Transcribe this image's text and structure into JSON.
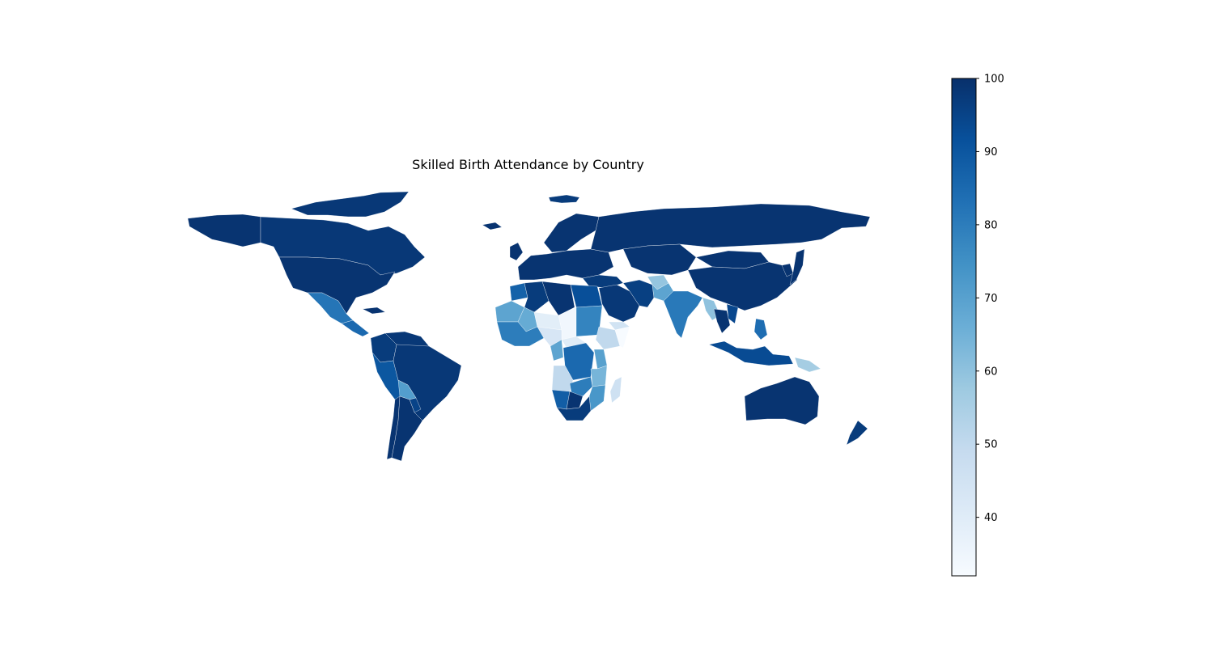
{
  "title": "Skilled Birth Attendance by Country",
  "colormap": {
    "name": "Blues",
    "stops": [
      "#f7fbff",
      "#deebf7",
      "#c6dbef",
      "#9ecae1",
      "#6baed6",
      "#4292c6",
      "#2171b5",
      "#08519c",
      "#08306b"
    ]
  },
  "colorbar": {
    "vmin": 32,
    "vmax": 100,
    "ticks": [
      {
        "value": 40,
        "label": "40"
      },
      {
        "value": 50,
        "label": "50"
      },
      {
        "value": 60,
        "label": "60"
      },
      {
        "value": 70,
        "label": "70"
      },
      {
        "value": 80,
        "label": "80"
      },
      {
        "value": 90,
        "label": "90"
      },
      {
        "value": 100,
        "label": "100"
      }
    ]
  },
  "chart_data": {
    "type": "choropleth",
    "title": "Skilled Birth Attendance by Country",
    "value_range": [
      32,
      100
    ],
    "regions": [
      {
        "id": "canada",
        "value": 98
      },
      {
        "id": "alaska",
        "value": 99
      },
      {
        "id": "greenland",
        "value": 97
      },
      {
        "id": "canadian-arctic",
        "value": 98
      },
      {
        "id": "usa",
        "value": 99
      },
      {
        "id": "mexico",
        "value": 82
      },
      {
        "id": "central-america",
        "value": 85
      },
      {
        "id": "cuba",
        "value": 99
      },
      {
        "id": "colombia",
        "value": 97
      },
      {
        "id": "venezuela",
        "value": 98
      },
      {
        "id": "peru",
        "value": 90
      },
      {
        "id": "brazil",
        "value": 98
      },
      {
        "id": "bolivia",
        "value": 71
      },
      {
        "id": "paraguay",
        "value": 95
      },
      {
        "id": "argentina",
        "value": 99
      },
      {
        "id": "chile",
        "value": 99
      },
      {
        "id": "iceland",
        "value": 99
      },
      {
        "id": "uk",
        "value": 99
      },
      {
        "id": "scandinavia",
        "value": 99
      },
      {
        "id": "europe",
        "value": 99
      },
      {
        "id": "turkey",
        "value": 97
      },
      {
        "id": "russia",
        "value": 99
      },
      {
        "id": "kazakhstan-central-asia",
        "value": 99
      },
      {
        "id": "mongolia",
        "value": 99
      },
      {
        "id": "china",
        "value": 99
      },
      {
        "id": "japan",
        "value": 99
      },
      {
        "id": "korea",
        "value": 99
      },
      {
        "id": "middle-east",
        "value": 98
      },
      {
        "id": "iran",
        "value": 96
      },
      {
        "id": "afghanistan",
        "value": 59
      },
      {
        "id": "pakistan",
        "value": 69
      },
      {
        "id": "india",
        "value": 81
      },
      {
        "id": "myanmar",
        "value": 60
      },
      {
        "id": "thailand",
        "value": 99
      },
      {
        "id": "vietnam",
        "value": 94
      },
      {
        "id": "philippines",
        "value": 84
      },
      {
        "id": "indonesia",
        "value": 93
      },
      {
        "id": "papua-new-guinea",
        "value": 56
      },
      {
        "id": "australia",
        "value": 99
      },
      {
        "id": "new-zealand",
        "value": 97
      },
      {
        "id": "morocco",
        "value": 87
      },
      {
        "id": "algeria",
        "value": 97
      },
      {
        "id": "libya",
        "value": 99
      },
      {
        "id": "egypt",
        "value": 92
      },
      {
        "id": "mauritania",
        "value": 69
      },
      {
        "id": "mali",
        "value": 67
      },
      {
        "id": "niger",
        "value": 39
      },
      {
        "id": "chad",
        "value": 34
      },
      {
        "id": "sudan",
        "value": 78
      },
      {
        "id": "ethiopia",
        "value": 50
      },
      {
        "id": "somalia",
        "value": 32
      },
      {
        "id": "yemen",
        "value": 45
      },
      {
        "id": "west-africa",
        "value": 80
      },
      {
        "id": "nigeria",
        "value": 43
      },
      {
        "id": "cameroon",
        "value": 69
      },
      {
        "id": "central-african-rep",
        "value": 40
      },
      {
        "id": "drc",
        "value": 85
      },
      {
        "id": "kenya",
        "value": 70
      },
      {
        "id": "tanzania",
        "value": 64
      },
      {
        "id": "angola",
        "value": 50
      },
      {
        "id": "zambia",
        "value": 80
      },
      {
        "id": "mozambique",
        "value": 73
      },
      {
        "id": "namibia",
        "value": 88
      },
      {
        "id": "botswana",
        "value": 99
      },
      {
        "id": "south-africa",
        "value": 97
      },
      {
        "id": "madagascar",
        "value": 46
      }
    ]
  }
}
